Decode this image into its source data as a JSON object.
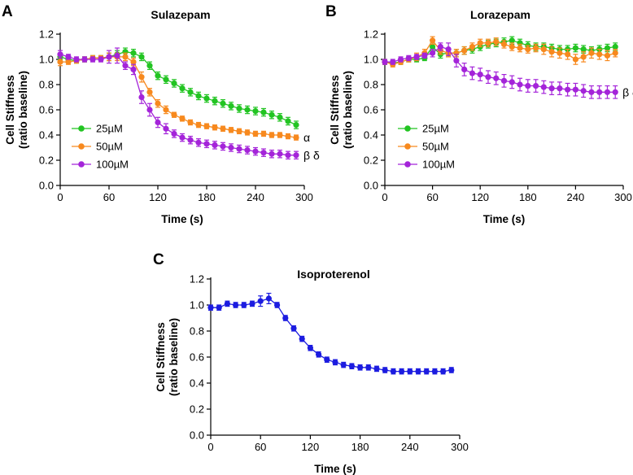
{
  "chart_data": [
    {
      "panel": "A",
      "type": "line",
      "title": "Sulazepam",
      "xlabel": "Time (s)",
      "ylabel": [
        "Cell Stiffness",
        "(ratio baseline)"
      ],
      "xlim": [
        0,
        300
      ],
      "ylim": [
        0.0,
        1.2
      ],
      "xticks": [
        "0",
        "60",
        "120",
        "180",
        "240",
        "300"
      ],
      "yticks": [
        "0.0",
        "0.2",
        "0.4",
        "0.6",
        "0.8",
        "1.0",
        "1.2"
      ],
      "legend_position": "middle-left",
      "x": [
        0,
        10,
        20,
        30,
        40,
        50,
        60,
        70,
        80,
        90,
        100,
        110,
        120,
        130,
        140,
        150,
        160,
        170,
        180,
        190,
        200,
        210,
        220,
        230,
        240,
        250,
        260,
        270,
        280,
        290
      ],
      "series": [
        {
          "name": "25µM",
          "color": "#22c422",
          "values": [
            1.02,
            1.0,
            0.99,
            1.0,
            1.01,
            1.01,
            1.02,
            1.04,
            1.06,
            1.05,
            1.02,
            0.95,
            0.87,
            0.84,
            0.81,
            0.77,
            0.74,
            0.71,
            0.69,
            0.67,
            0.65,
            0.63,
            0.61,
            0.6,
            0.59,
            0.58,
            0.56,
            0.54,
            0.51,
            0.48
          ],
          "errors": [
            0.02,
            0.02,
            0.02,
            0.02,
            0.02,
            0.02,
            0.03,
            0.03,
            0.03,
            0.03,
            0.03,
            0.03,
            0.03,
            0.03,
            0.03,
            0.03,
            0.03,
            0.03,
            0.03,
            0.03,
            0.03,
            0.03,
            0.03,
            0.03,
            0.03,
            0.03,
            0.03,
            0.03,
            0.03,
            0.03
          ]
        },
        {
          "name": "50µM",
          "color": "#f7891e",
          "values": [
            0.98,
            0.98,
            0.99,
            1.0,
            1.01,
            1.01,
            1.02,
            1.02,
            1.02,
            0.98,
            0.86,
            0.74,
            0.65,
            0.6,
            0.56,
            0.53,
            0.5,
            0.48,
            0.47,
            0.46,
            0.45,
            0.44,
            0.43,
            0.42,
            0.41,
            0.41,
            0.4,
            0.4,
            0.39,
            0.38
          ],
          "errors": [
            0.03,
            0.02,
            0.02,
            0.02,
            0.02,
            0.02,
            0.03,
            0.03,
            0.03,
            0.03,
            0.04,
            0.03,
            0.03,
            0.03,
            0.02,
            0.02,
            0.02,
            0.02,
            0.02,
            0.02,
            0.02,
            0.02,
            0.02,
            0.02,
            0.02,
            0.02,
            0.02,
            0.02,
            0.02,
            0.02
          ]
        },
        {
          "name": "100µM",
          "color": "#a424d9",
          "values": [
            1.04,
            1.02,
            1.0,
            1.0,
            1.0,
            1.0,
            1.02,
            1.03,
            0.95,
            0.92,
            0.7,
            0.6,
            0.5,
            0.45,
            0.41,
            0.38,
            0.36,
            0.34,
            0.33,
            0.32,
            0.31,
            0.3,
            0.29,
            0.28,
            0.27,
            0.26,
            0.25,
            0.25,
            0.24,
            0.24
          ],
          "errors": [
            0.03,
            0.02,
            0.02,
            0.02,
            0.02,
            0.02,
            0.05,
            0.06,
            0.03,
            0.04,
            0.05,
            0.05,
            0.04,
            0.04,
            0.03,
            0.03,
            0.03,
            0.03,
            0.03,
            0.03,
            0.03,
            0.03,
            0.03,
            0.03,
            0.03,
            0.03,
            0.03,
            0.03,
            0.03,
            0.03
          ]
        }
      ],
      "annotations": [
        {
          "text": "α",
          "x": 296,
          "y": 0.38
        },
        {
          "text": "β δ",
          "x": 296,
          "y": 0.24
        }
      ]
    },
    {
      "panel": "B",
      "type": "line",
      "title": "Lorazepam",
      "xlabel": "Time (s)",
      "ylabel": [
        "Cell Stiffness",
        "(ratio baseline)"
      ],
      "xlim": [
        0,
        300
      ],
      "ylim": [
        0.0,
        1.2
      ],
      "xticks": [
        "0",
        "60",
        "120",
        "180",
        "240",
        "300"
      ],
      "yticks": [
        "0.0",
        "0.2",
        "0.4",
        "0.6",
        "0.8",
        "1.0",
        "1.2"
      ],
      "legend_position": "middle-left",
      "x": [
        0,
        10,
        20,
        30,
        40,
        50,
        60,
        70,
        80,
        90,
        100,
        110,
        120,
        130,
        140,
        150,
        160,
        170,
        180,
        190,
        200,
        210,
        220,
        230,
        240,
        250,
        260,
        270,
        280,
        290
      ],
      "series": [
        {
          "name": "25µM",
          "color": "#22c422",
          "values": [
            0.98,
            0.97,
            0.98,
            1.0,
            1.0,
            1.01,
            1.1,
            1.04,
            1.05,
            1.05,
            1.07,
            1.08,
            1.1,
            1.12,
            1.13,
            1.14,
            1.15,
            1.13,
            1.11,
            1.1,
            1.1,
            1.09,
            1.08,
            1.08,
            1.09,
            1.08,
            1.07,
            1.08,
            1.09,
            1.1
          ],
          "errors": [
            0.02,
            0.02,
            0.02,
            0.02,
            0.02,
            0.02,
            0.03,
            0.03,
            0.03,
            0.03,
            0.03,
            0.03,
            0.03,
            0.03,
            0.03,
            0.03,
            0.03,
            0.03,
            0.03,
            0.03,
            0.03,
            0.03,
            0.03,
            0.03,
            0.03,
            0.03,
            0.03,
            0.03,
            0.03,
            0.03
          ]
        },
        {
          "name": "50µM",
          "color": "#f7891e",
          "values": [
            0.98,
            0.96,
            0.98,
            1.0,
            1.02,
            1.05,
            1.15,
            1.07,
            1.05,
            1.05,
            1.07,
            1.1,
            1.13,
            1.13,
            1.14,
            1.12,
            1.1,
            1.09,
            1.08,
            1.09,
            1.08,
            1.06,
            1.05,
            1.04,
            1.0,
            1.02,
            1.05,
            1.04,
            1.03,
            1.05
          ],
          "errors": [
            0.02,
            0.02,
            0.02,
            0.02,
            0.03,
            0.03,
            0.03,
            0.03,
            0.03,
            0.03,
            0.03,
            0.03,
            0.03,
            0.03,
            0.03,
            0.03,
            0.03,
            0.03,
            0.03,
            0.03,
            0.04,
            0.04,
            0.04,
            0.04,
            0.04,
            0.04,
            0.04,
            0.04,
            0.04,
            0.03
          ]
        },
        {
          "name": "100µM",
          "color": "#a424d9",
          "values": [
            0.98,
            0.98,
            1.0,
            1.01,
            1.02,
            1.03,
            1.05,
            1.1,
            1.08,
            0.99,
            0.92,
            0.89,
            0.88,
            0.86,
            0.85,
            0.83,
            0.82,
            0.8,
            0.79,
            0.79,
            0.78,
            0.77,
            0.77,
            0.76,
            0.76,
            0.75,
            0.74,
            0.74,
            0.74,
            0.74
          ],
          "errors": [
            0.02,
            0.02,
            0.02,
            0.02,
            0.02,
            0.02,
            0.03,
            0.03,
            0.05,
            0.05,
            0.05,
            0.05,
            0.05,
            0.05,
            0.05,
            0.05,
            0.05,
            0.05,
            0.05,
            0.05,
            0.05,
            0.05,
            0.05,
            0.05,
            0.05,
            0.05,
            0.05,
            0.05,
            0.05,
            0.05
          ]
        }
      ],
      "annotations": [
        {
          "text": "β δ",
          "x": 296,
          "y": 0.74
        }
      ]
    },
    {
      "panel": "C",
      "type": "line",
      "title": "Isoproterenol",
      "xlabel": "Time (s)",
      "ylabel": [
        "Cell Stiffness",
        "(ratio baseline)"
      ],
      "xlim": [
        0,
        300
      ],
      "ylim": [
        0.0,
        1.2
      ],
      "xticks": [
        "0",
        "60",
        "120",
        "180",
        "240",
        "300"
      ],
      "yticks": [
        "0.0",
        "0.2",
        "0.4",
        "0.6",
        "0.8",
        "1.0",
        "1.2"
      ],
      "x": [
        0,
        10,
        20,
        30,
        40,
        50,
        60,
        70,
        80,
        90,
        100,
        110,
        120,
        130,
        140,
        150,
        160,
        170,
        180,
        190,
        200,
        210,
        220,
        230,
        240,
        250,
        260,
        270,
        280,
        290
      ],
      "series": [
        {
          "name": "Isoproterenol",
          "color": "#1c1ce0",
          "values": [
            0.98,
            0.98,
            1.01,
            1.0,
            1.0,
            1.01,
            1.03,
            1.05,
            1.0,
            0.9,
            0.82,
            0.74,
            0.67,
            0.62,
            0.58,
            0.56,
            0.54,
            0.53,
            0.52,
            0.52,
            0.51,
            0.5,
            0.49,
            0.49,
            0.49,
            0.49,
            0.49,
            0.49,
            0.49,
            0.5
          ],
          "errors": [
            0.02,
            0.02,
            0.02,
            0.02,
            0.02,
            0.02,
            0.04,
            0.04,
            0.02,
            0.02,
            0.02,
            0.02,
            0.02,
            0.02,
            0.02,
            0.02,
            0.02,
            0.02,
            0.02,
            0.02,
            0.02,
            0.02,
            0.02,
            0.02,
            0.02,
            0.02,
            0.02,
            0.02,
            0.02,
            0.02
          ]
        }
      ],
      "annotations": []
    }
  ]
}
